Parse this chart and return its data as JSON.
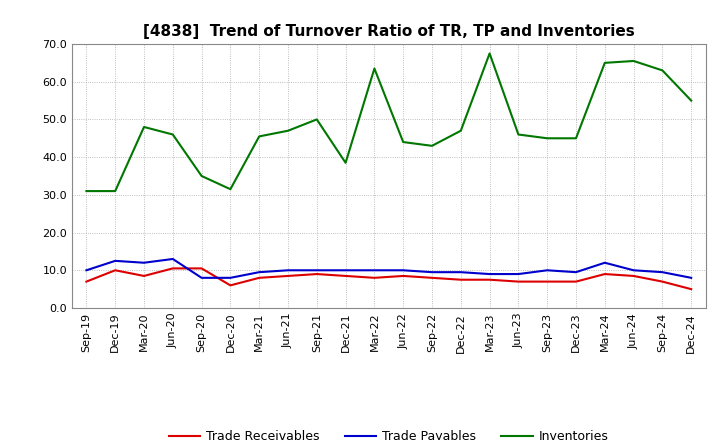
{
  "title": "[4838]  Trend of Turnover Ratio of TR, TP and Inventories",
  "x_labels": [
    "Sep-19",
    "Dec-19",
    "Mar-20",
    "Jun-20",
    "Sep-20",
    "Dec-20",
    "Mar-21",
    "Jun-21",
    "Sep-21",
    "Dec-21",
    "Mar-22",
    "Jun-22",
    "Sep-22",
    "Dec-22",
    "Mar-23",
    "Jun-23",
    "Sep-23",
    "Dec-23",
    "Mar-24",
    "Jun-24",
    "Sep-24",
    "Dec-24"
  ],
  "trade_receivables": [
    7.0,
    10.0,
    8.5,
    10.5,
    10.5,
    6.0,
    8.0,
    8.5,
    9.0,
    8.5,
    8.0,
    8.5,
    8.0,
    7.5,
    7.5,
    7.0,
    7.0,
    7.0,
    9.0,
    8.5,
    7.0,
    5.0
  ],
  "trade_payables": [
    10.0,
    12.5,
    12.0,
    13.0,
    8.0,
    8.0,
    9.5,
    10.0,
    10.0,
    10.0,
    10.0,
    10.0,
    9.5,
    9.5,
    9.0,
    9.0,
    10.0,
    9.5,
    12.0,
    10.0,
    9.5,
    8.0
  ],
  "inventories": [
    31.0,
    31.0,
    48.0,
    46.0,
    35.0,
    31.5,
    45.5,
    47.0,
    50.0,
    38.5,
    63.5,
    44.0,
    43.0,
    47.0,
    67.5,
    46.0,
    45.0,
    45.0,
    65.0,
    65.5,
    63.0,
    55.0
  ],
  "color_tr": "#dd0000",
  "color_tp": "#0000cc",
  "color_inv": "#007700",
  "ylim": [
    0.0,
    70.0
  ],
  "yticks": [
    0.0,
    10.0,
    20.0,
    30.0,
    40.0,
    50.0,
    60.0,
    70.0
  ],
  "legend_labels": [
    "Trade Receivables",
    "Trade Payables",
    "Inventories"
  ],
  "background_color": "#ffffff",
  "grid_color": "#aaaaaa",
  "title_fontsize": 11,
  "tick_fontsize": 8,
  "linewidth": 1.5
}
